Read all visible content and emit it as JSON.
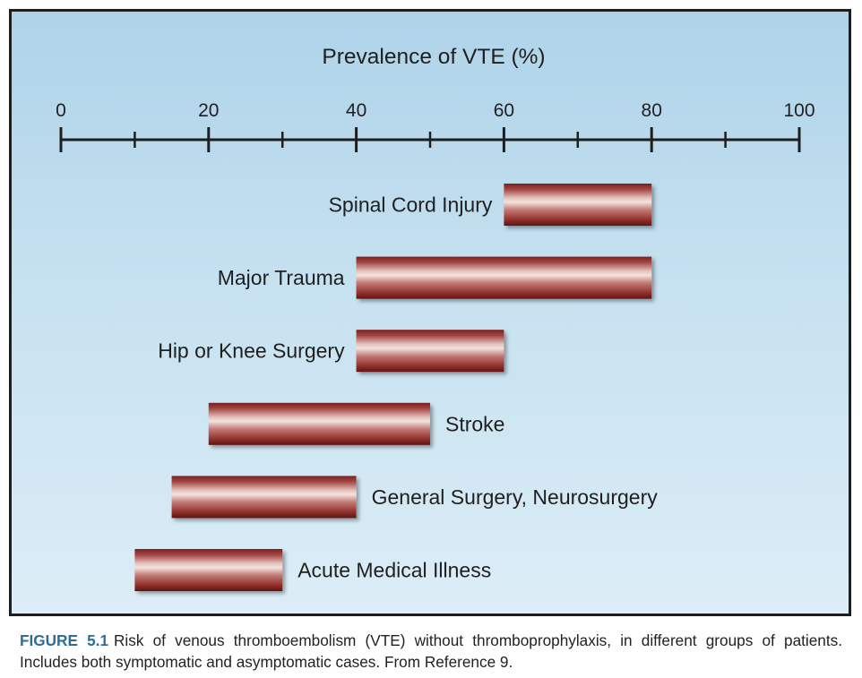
{
  "chart_data": {
    "type": "bar",
    "subtype": "floating-range-horizontal",
    "title": "Prevalence of VTE (%)",
    "xlim": [
      0,
      100
    ],
    "tick_labels": [
      "0",
      "20",
      "40",
      "60",
      "80",
      "100"
    ],
    "major_ticks": [
      0,
      20,
      40,
      60,
      80,
      100
    ],
    "minor_ticks": [
      10,
      30,
      50,
      70,
      90
    ],
    "bars": [
      {
        "label": "Spinal Cord Injury",
        "low": 60,
        "high": 80,
        "label_side": "left"
      },
      {
        "label": "Major Trauma",
        "low": 40,
        "high": 80,
        "label_side": "left"
      },
      {
        "label": "Hip or Knee Surgery",
        "low": 40,
        "high": 60,
        "label_side": "left"
      },
      {
        "label": "Stroke",
        "low": 20,
        "high": 50,
        "label_side": "right"
      },
      {
        "label": "General Surgery, Neurosurgery",
        "low": 15,
        "high": 40,
        "label_side": "right"
      },
      {
        "label": "Acute Medical Illness",
        "low": 10,
        "high": 30,
        "label_side": "right"
      }
    ],
    "colors": {
      "bar_dark": "#7a1f1e",
      "bar_mid": "#b86a66",
      "bar_light": "#f1dcd8",
      "axis": "#1e1e1e",
      "text": "#1f1f1f"
    }
  },
  "caption": {
    "label": "FIGURE 5.1",
    "text": "Risk of venous thromboembolism (VTE) without thromboprophylaxis, in different groups of patients. Includes both symptomatic and asymptomatic cases. From Reference 9."
  }
}
